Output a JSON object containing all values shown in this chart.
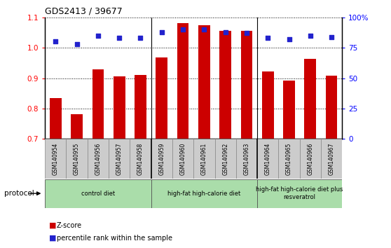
{
  "title": "GDS2413 / 39677",
  "categories": [
    "GSM140954",
    "GSM140955",
    "GSM140956",
    "GSM140957",
    "GSM140958",
    "GSM140959",
    "GSM140960",
    "GSM140961",
    "GSM140962",
    "GSM140963",
    "GSM140964",
    "GSM140965",
    "GSM140966",
    "GSM140967"
  ],
  "zscore": [
    0.835,
    0.782,
    0.93,
    0.905,
    0.91,
    0.967,
    1.08,
    1.073,
    1.055,
    1.055,
    0.922,
    0.892,
    0.963,
    0.907
  ],
  "percentile": [
    80,
    78,
    85,
    83,
    83,
    88,
    90,
    90,
    88,
    87,
    83,
    82,
    85,
    84
  ],
  "ylim_left": [
    0.7,
    1.1
  ],
  "ylim_right": [
    0,
    100
  ],
  "yticks_left": [
    0.7,
    0.8,
    0.9,
    1.0,
    1.1
  ],
  "yticks_right": [
    0,
    25,
    50,
    75,
    100
  ],
  "ytick_labels_right": [
    "0",
    "25",
    "50",
    "75",
    "100%"
  ],
  "bar_color": "#cc0000",
  "dot_color": "#2222cc",
  "group_labels": [
    "control diet",
    "high-fat high-calorie diet",
    "high-fat high-calorie diet plus\nresveratrol"
  ],
  "group_color": "#aaddaa",
  "protocol_label": "protocol",
  "tick_label_area_color": "#cccccc",
  "bar_width": 0.55
}
